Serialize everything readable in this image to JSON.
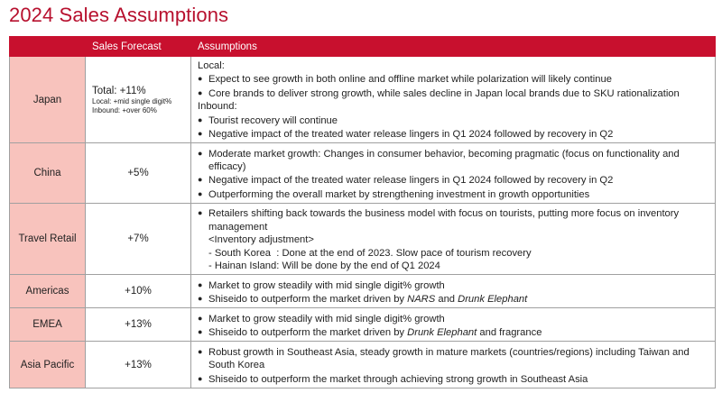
{
  "title": "2024 Sales Assumptions",
  "headers": {
    "region": "",
    "forecast": "Sales Forecast",
    "assumptions": "Assumptions"
  },
  "japan": {
    "region": "Japan",
    "total": "Total:  +11%",
    "sub1": "Local: +mid single digit%",
    "sub2": "Inbound: +over 60%",
    "l1": "Local:",
    "l2": "Expect to see growth in both online and offline market while polarization will likely continue",
    "l3": "Core brands to deliver strong growth, while sales decline in Japan local brands due to SKU rationalization",
    "l4": "Inbound:",
    "l5": "Tourist recovery will continue",
    "l6": "Negative impact of the treated water release lingers in Q1 2024 followed by recovery in Q2"
  },
  "china": {
    "region": "China",
    "forecast": "+5%",
    "l1": "Moderate market growth: Changes in consumer behavior, becoming pragmatic (focus on functionality and efficacy)",
    "l2": "Negative impact of the treated water release lingers in Q1 2024 followed by recovery in Q2",
    "l3": "Outperforming the overall market by strengthening investment in growth opportunities"
  },
  "travel": {
    "region": "Travel Retail",
    "forecast": "+7%",
    "l1": "Retailers shifting back towards the business model with focus on tourists, putting more focus on inventory management",
    "l2": "<Inventory adjustment>",
    "l3": "- South Korea  : Done at the end of 2023. Slow pace of tourism recovery",
    "l4": "- Hainan Island: Will be done by the end of Q1 2024"
  },
  "americas": {
    "region": "Americas",
    "forecast": "+10%",
    "l1": "Market to grow steadily with mid single digit% growth",
    "l2a": "Shiseido to outperform the market driven by ",
    "l2b": "NARS",
    "l2c": " and ",
    "l2d": "Drunk Elephant"
  },
  "emea": {
    "region": "EMEA",
    "forecast": "+13%",
    "l1": "Market to grow steadily with mid single digit% growth",
    "l2a": "Shiseido to outperform the market driven by ",
    "l2b": "Drunk Elephant",
    "l2c": " and fragrance"
  },
  "apac": {
    "region": "Asia Pacific",
    "forecast": "+13%",
    "l1": "Robust growth in Southeast Asia, steady growth in mature markets (countries/regions) including Taiwan and South Korea",
    "l2": "Shiseido to outperform the market through achieving strong growth in Southeast Asia"
  }
}
